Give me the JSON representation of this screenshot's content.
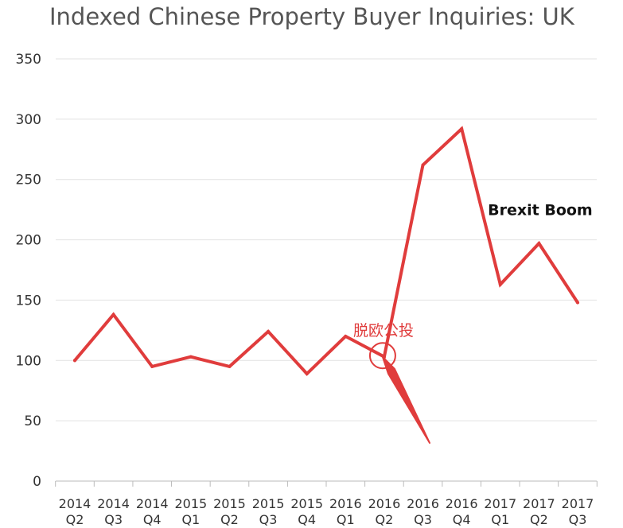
{
  "colors": {
    "line": "#e03c3c",
    "grid": "#e2e2e2",
    "axis": "#bbbbbb",
    "text": "#333333",
    "title": "#555555"
  },
  "chart_data": {
    "type": "line",
    "title": "Indexed Chinese Property Buyer Inquiries: UK",
    "xlabel": "",
    "ylabel": "",
    "ylim": [
      0,
      350
    ],
    "yticks": [
      0,
      50,
      100,
      150,
      200,
      250,
      300,
      350
    ],
    "grid": true,
    "categories": [
      [
        "2014",
        "Q2"
      ],
      [
        "2014",
        "Q3"
      ],
      [
        "2014",
        "Q4"
      ],
      [
        "2015",
        "Q1"
      ],
      [
        "2015",
        "Q2"
      ],
      [
        "2015",
        "Q3"
      ],
      [
        "2015",
        "Q4"
      ],
      [
        "2016",
        "Q1"
      ],
      [
        "2016",
        "Q2"
      ],
      [
        "2016",
        "Q3"
      ],
      [
        "2016",
        "Q4"
      ],
      [
        "2017",
        "Q1"
      ],
      [
        "2017",
        "Q2"
      ],
      [
        "2017",
        "Q3"
      ]
    ],
    "series": [
      {
        "values": [
          100,
          138,
          95,
          103,
          95,
          124,
          89,
          120,
          103,
          262,
          292,
          163,
          197,
          148
        ]
      }
    ],
    "annotations": [
      {
        "text": "Brexit Boom",
        "category_index": 10,
        "y": 225
      },
      {
        "text": "脱欧公投",
        "category_index": 8,
        "y": 100
      }
    ]
  }
}
